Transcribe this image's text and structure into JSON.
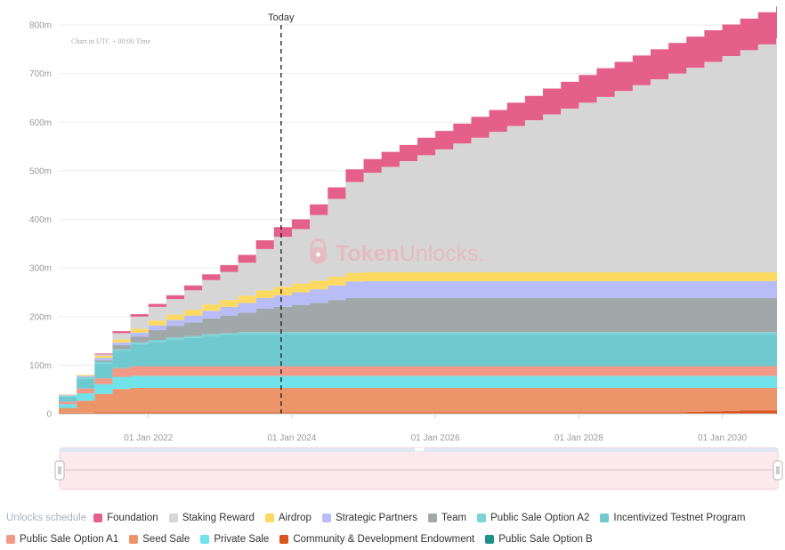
{
  "chart_data": {
    "type": "area",
    "stacked": true,
    "note": "Chart in UTC + 00:00 Time",
    "watermark": {
      "bold": "Token",
      "light": "Unlocks."
    },
    "today_label": "Today",
    "today_x": 2023.85,
    "x_ticks": [
      {
        "x": 2022,
        "label": "01 Jan 2022"
      },
      {
        "x": 2024,
        "label": "01 Jan 2024"
      },
      {
        "x": 2026,
        "label": "01 Jan 2026"
      },
      {
        "x": 2028,
        "label": "01 Jan 2028"
      },
      {
        "x": 2030,
        "label": "01 Jan 2030"
      }
    ],
    "xlim": [
      2020.75,
      2030.75
    ],
    "y_ticks": [
      {
        "v": 0,
        "label": "0"
      },
      {
        "v": 100,
        "label": "100m"
      },
      {
        "v": 200,
        "label": "200m"
      },
      {
        "v": 300,
        "label": "300m"
      },
      {
        "v": 400,
        "label": "400m"
      },
      {
        "v": 500,
        "label": "500m"
      },
      {
        "v": 600,
        "label": "600m"
      },
      {
        "v": 700,
        "label": "700m"
      },
      {
        "v": 800,
        "label": "800m"
      }
    ],
    "ylim": [
      0,
      800
    ],
    "grid": true,
    "legend_position": "bottom",
    "legend_title": "Unlocks schedule",
    "x": [
      2020.75,
      2021.0,
      2021.25,
      2021.5,
      2021.75,
      2022.0,
      2022.25,
      2022.5,
      2022.75,
      2023.0,
      2023.25,
      2023.5,
      2023.75,
      2024.0,
      2024.25,
      2024.5,
      2024.75,
      2025.0,
      2025.25,
      2025.5,
      2025.75,
      2026.0,
      2026.25,
      2026.5,
      2026.75,
      2027.0,
      2027.25,
      2027.5,
      2027.75,
      2028.0,
      2028.25,
      2028.5,
      2028.75,
      2029.0,
      2029.25,
      2029.5,
      2029.75,
      2030.0,
      2030.25,
      2030.5,
      2030.75
    ],
    "series": [
      {
        "name": "Public Sale Option B",
        "color": "#1f8f8a",
        "values": [
          1,
          1,
          1,
          1,
          1,
          1,
          1,
          1,
          1,
          1,
          1,
          1,
          1,
          1,
          1,
          1,
          1,
          1,
          1,
          1,
          1,
          1,
          1,
          1,
          1,
          1,
          1,
          1,
          1,
          1,
          1,
          1,
          1,
          1,
          1,
          1,
          1,
          1,
          1,
          1,
          1
        ]
      },
      {
        "name": "Community & Development Endowment",
        "color": "#d9541f",
        "values": [
          1,
          1,
          2,
          2,
          2,
          2,
          2,
          2,
          2,
          2,
          2,
          2,
          2,
          2,
          2,
          2,
          2,
          2,
          2,
          2,
          2,
          2,
          2,
          2,
          2,
          2,
          2,
          2,
          2,
          2,
          2,
          2,
          2,
          2,
          2,
          3,
          4,
          5,
          6,
          6,
          6
        ]
      },
      {
        "name": "Seed Sale",
        "color": "#ec946a",
        "values": [
          10,
          25,
          38,
          48,
          50,
          50,
          50,
          50,
          50,
          50,
          50,
          50,
          50,
          50,
          50,
          50,
          50,
          50,
          50,
          50,
          50,
          50,
          50,
          50,
          50,
          50,
          50,
          50,
          50,
          50,
          50,
          50,
          50,
          50,
          50,
          49,
          48,
          47,
          46,
          46,
          46
        ]
      },
      {
        "name": "Private Sale",
        "color": "#6fe2ea",
        "values": [
          8,
          15,
          20,
          25,
          25,
          25,
          25,
          25,
          25,
          25,
          25,
          25,
          25,
          25,
          25,
          25,
          25,
          25,
          25,
          25,
          25,
          25,
          25,
          25,
          25,
          25,
          25,
          25,
          25,
          25,
          25,
          25,
          25,
          25,
          25,
          25,
          25,
          25,
          25,
          25,
          25
        ]
      },
      {
        "name": "Public Sale Option A1",
        "color": "#f39988",
        "values": [
          5,
          10,
          12,
          18,
          20,
          20,
          20,
          20,
          20,
          20,
          20,
          20,
          20,
          20,
          20,
          20,
          20,
          20,
          20,
          20,
          20,
          20,
          20,
          20,
          20,
          20,
          20,
          20,
          20,
          20,
          20,
          20,
          20,
          20,
          20,
          20,
          20,
          20,
          20,
          20,
          20
        ]
      },
      {
        "name": "Incentivized Testnet Program",
        "color": "#6fcad0",
        "values": [
          10,
          20,
          30,
          35,
          45,
          50,
          55,
          58,
          62,
          64,
          66,
          66,
          66,
          66,
          66,
          66,
          66,
          66,
          66,
          66,
          66,
          66,
          66,
          66,
          66,
          66,
          66,
          66,
          66,
          66,
          66,
          66,
          66,
          66,
          66,
          66,
          66,
          66,
          66,
          66,
          66
        ]
      },
      {
        "name": "Public Sale Option A2",
        "color": "#7ed3d6",
        "values": [
          2,
          3,
          4,
          4,
          4,
          4,
          4,
          4,
          4,
          4,
          4,
          4,
          4,
          4,
          4,
          4,
          4,
          4,
          4,
          4,
          4,
          4,
          4,
          4,
          4,
          4,
          4,
          4,
          4,
          4,
          4,
          4,
          4,
          4,
          4,
          4,
          4,
          4,
          4,
          4,
          4
        ]
      },
      {
        "name": "Team",
        "color": "#a0a8aa",
        "values": [
          0,
          0,
          3,
          8,
          12,
          20,
          24,
          28,
          32,
          36,
          40,
          48,
          52,
          56,
          60,
          66,
          70,
          70,
          70,
          70,
          70,
          70,
          70,
          70,
          70,
          70,
          70,
          70,
          70,
          70,
          70,
          70,
          70,
          70,
          70,
          70,
          70,
          70,
          70,
          70,
          70
        ]
      },
      {
        "name": "Strategic Partners",
        "color": "#b8bdf8",
        "values": [
          2,
          3,
          5,
          6,
          8,
          10,
          12,
          14,
          16,
          18,
          20,
          22,
          24,
          26,
          28,
          30,
          34,
          35,
          35,
          35,
          35,
          35,
          35,
          35,
          35,
          35,
          35,
          35,
          35,
          35,
          35,
          35,
          35,
          35,
          35,
          35,
          35,
          35,
          35,
          35,
          35
        ]
      },
      {
        "name": "Airdrop",
        "color": "#fcd961",
        "values": [
          1,
          2,
          4,
          6,
          8,
          10,
          11,
          12,
          13,
          14,
          15,
          16,
          17,
          18,
          18,
          18,
          18,
          18,
          18,
          18,
          18,
          18,
          18,
          18,
          18,
          18,
          18,
          18,
          18,
          18,
          18,
          18,
          18,
          18,
          18,
          18,
          18,
          18,
          18,
          18,
          18
        ]
      },
      {
        "name": "Staking Reward",
        "color": "#d6d6d6",
        "values": [
          0,
          0,
          3,
          13,
          25,
          28,
          32,
          40,
          50,
          58,
          68,
          85,
          103,
          112,
          135,
          160,
          187,
          205,
          217,
          229,
          241,
          253,
          265,
          277,
          289,
          301,
          313,
          325,
          337,
          349,
          361,
          373,
          385,
          397,
          409,
          421,
          433,
          445,
          457,
          469,
          481
        ]
      },
      {
        "name": "Foundation",
        "color": "#e55f8b",
        "values": [
          0,
          0,
          2,
          4,
          5,
          6,
          8,
          10,
          12,
          14,
          16,
          18,
          20,
          20,
          22,
          24,
          26,
          28,
          31,
          33,
          36,
          38,
          41,
          43,
          45,
          48,
          50,
          53,
          55,
          57,
          59,
          60,
          61,
          62,
          63,
          64,
          65,
          65,
          65,
          66,
          66
        ]
      }
    ],
    "legend_rows": [
      [
        "Foundation",
        "Staking Reward",
        "Airdrop",
        "Strategic Partners",
        "Team",
        "Public Sale Option A2",
        "Incentivized Testnet Program"
      ],
      [
        "Public Sale Option A1",
        "Seed Sale",
        "Private Sale",
        "Community & Development Endowment",
        "Public Sale Option B"
      ]
    ]
  }
}
